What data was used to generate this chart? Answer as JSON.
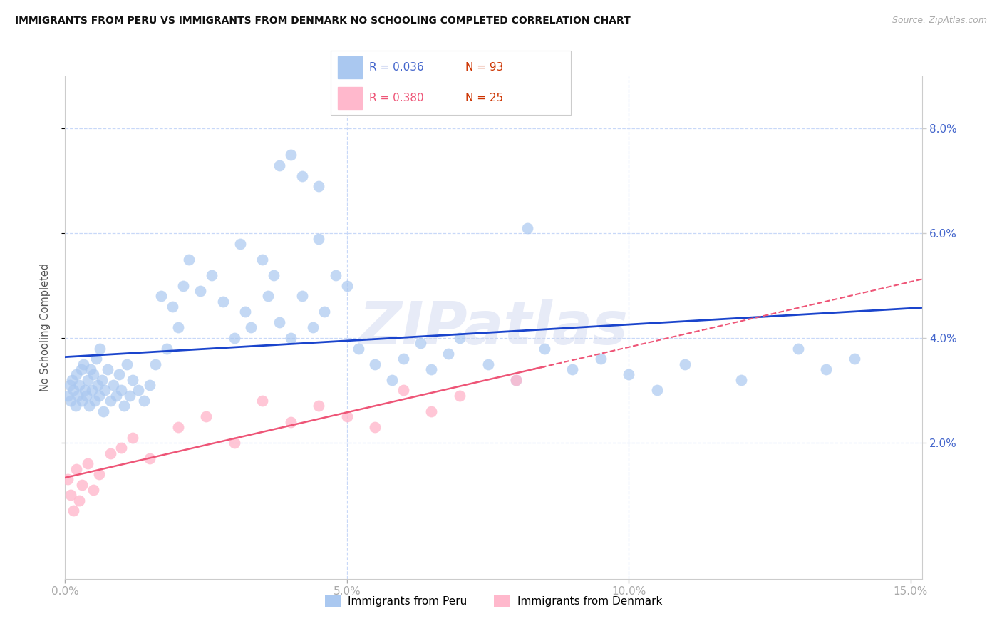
{
  "title": "IMMIGRANTS FROM PERU VS IMMIGRANTS FROM DENMARK NO SCHOOLING COMPLETED CORRELATION CHART",
  "source": "Source: ZipAtlas.com",
  "ylabel": "No Schooling Completed",
  "x_tick_labels": [
    "0.0%",
    "5.0%",
    "10.0%",
    "15.0%"
  ],
  "x_tick_values": [
    0.0,
    5.0,
    10.0,
    15.0
  ],
  "y_tick_labels": [
    "2.0%",
    "4.0%",
    "6.0%",
    "8.0%"
  ],
  "y_tick_values": [
    2.0,
    4.0,
    6.0,
    8.0
  ],
  "xlim": [
    0.0,
    15.2
  ],
  "ylim": [
    -0.6,
    9.0
  ],
  "legend_label1": "Immigrants from Peru",
  "legend_label2": "Immigrants from Denmark",
  "legend_r1": "R = 0.036",
  "legend_n1": "N = 93",
  "legend_r2": "R = 0.380",
  "legend_n2": "N = 25",
  "watermark": "ZIPatlas",
  "peru_scatter_color": "#aac8f0",
  "denmark_scatter_color": "#ffb8cc",
  "peru_line_color": "#1a44cc",
  "denmark_line_color": "#ee5577",
  "grid_color": "#c8d8f8",
  "background_color": "#ffffff",
  "tick_color": "#4466cc",
  "title_color": "#111111",
  "source_color": "#aaaaaa",
  "r_color": "#4466cc",
  "n_color": "#cc3300"
}
